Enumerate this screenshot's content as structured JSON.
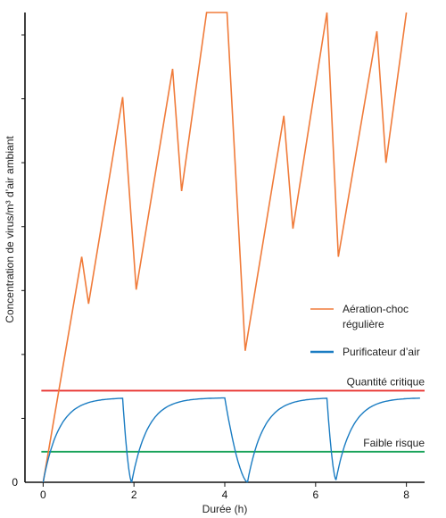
{
  "chart_data": {
    "type": "line",
    "title": "",
    "xlabel": "Durée (h)",
    "ylabel": "Concentration de virus/m³ d’air ambiant",
    "xlim": [
      -0.4,
      8.4
    ],
    "ylim": [
      0,
      100
    ],
    "x_ticks": [
      0,
      2,
      4,
      6,
      8
    ],
    "y_ticks": [
      0
    ],
    "colors": {
      "aeration": "#f07b3a",
      "purificateur": "#1a7cc2",
      "critique": "#e8322f",
      "faible": "#1aa35a",
      "axis": "#111111"
    },
    "series": [
      {
        "name": "Aération-choc régulière",
        "style": "zigzag",
        "x": [
          0.0,
          0.85,
          1.0,
          1.75,
          2.05,
          2.85,
          3.05,
          3.6,
          4.05,
          4.45,
          5.3,
          5.5,
          6.25,
          6.5,
          7.35,
          7.55,
          8.0
        ],
        "y": [
          0,
          48,
          38,
          82,
          41,
          88,
          62,
          100,
          100,
          28,
          78,
          54,
          100,
          48,
          96,
          68,
          100
        ]
      },
      {
        "name": "Purificateur d’air",
        "style": "sawtooth",
        "cycles": [
          {
            "start": 0.0,
            "end": 1.75,
            "floor": 0
          },
          {
            "start": 1.95,
            "end": 4.0,
            "floor": 0
          },
          {
            "start": 4.5,
            "end": 6.25,
            "floor": 0
          },
          {
            "start": 6.45,
            "end": 8.3,
            "floor": 0.5
          }
        ],
        "plateau": 18,
        "rise_time_constant_h": 0.35,
        "drop_time_constant_h": 0.07
      }
    ],
    "reference_lines": [
      {
        "name": "Quantité critique",
        "y": 19.5
      },
      {
        "name": "Faible risque",
        "y": 6.5
      }
    ],
    "legend": {
      "placement": "right",
      "entries": [
        {
          "label_line1": "Aération-choc",
          "label_line2": "régulière"
        },
        {
          "label_line1": "Purificateur d’air",
          "label_line2": ""
        }
      ]
    }
  }
}
